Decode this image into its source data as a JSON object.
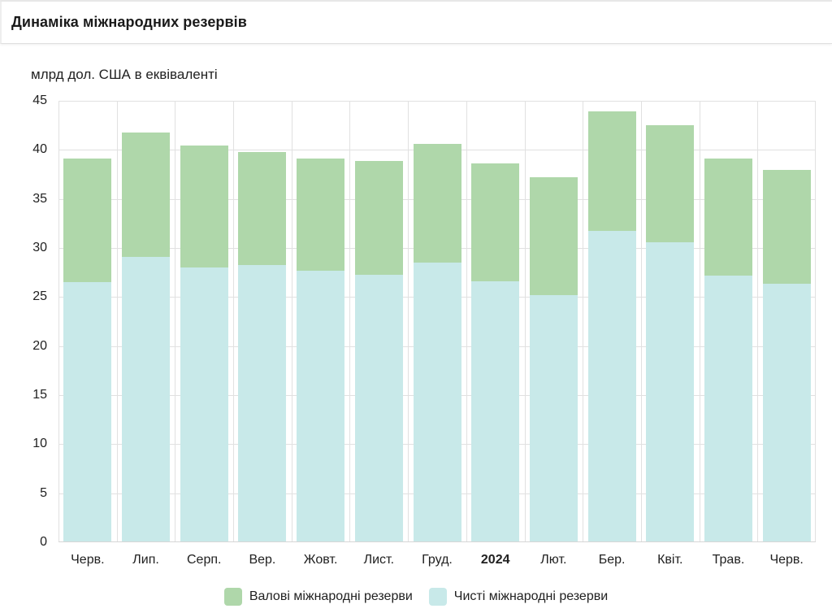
{
  "header": {
    "title": "Динаміка міжнародних резервів"
  },
  "chart_data": {
    "type": "bar",
    "title": "Динаміка міжнародних резервів",
    "subtitle": "млрд дол. США в еквіваленті",
    "ylabel": "млрд дол. США в еквіваленті",
    "xlabel": "",
    "categories": [
      "Черв.",
      "Лип.",
      "Серп.",
      "Вер.",
      "Жовт.",
      "Лист.",
      "Груд.",
      "2024",
      "Лют.",
      "Бер.",
      "Квіт.",
      "Трав.",
      "Черв."
    ],
    "emphasized_category_index": 7,
    "series": [
      {
        "name": "Валові міжнародні резерви",
        "color": "#afd7aa",
        "values": [
          39.0,
          41.7,
          40.4,
          39.7,
          39.0,
          38.8,
          40.5,
          38.5,
          37.1,
          43.8,
          42.4,
          39.0,
          37.9
        ]
      },
      {
        "name": "Чисті міжнародні резерви",
        "color": "#c8e9e9",
        "values": [
          26.4,
          29.0,
          27.9,
          28.2,
          27.6,
          27.2,
          28.4,
          26.5,
          25.1,
          31.7,
          30.5,
          27.1,
          26.3
        ]
      }
    ],
    "ylim": [
      0,
      45
    ],
    "ytick_step": 5,
    "grid": true,
    "bar_mode": "overlay",
    "legend_position": "bottom"
  },
  "colors": {
    "gridline": "#e1e1e1",
    "axis_text": "#212121",
    "title_text": "#1a1a1a",
    "divider": "#e0e0e0",
    "background": "#ffffff"
  }
}
